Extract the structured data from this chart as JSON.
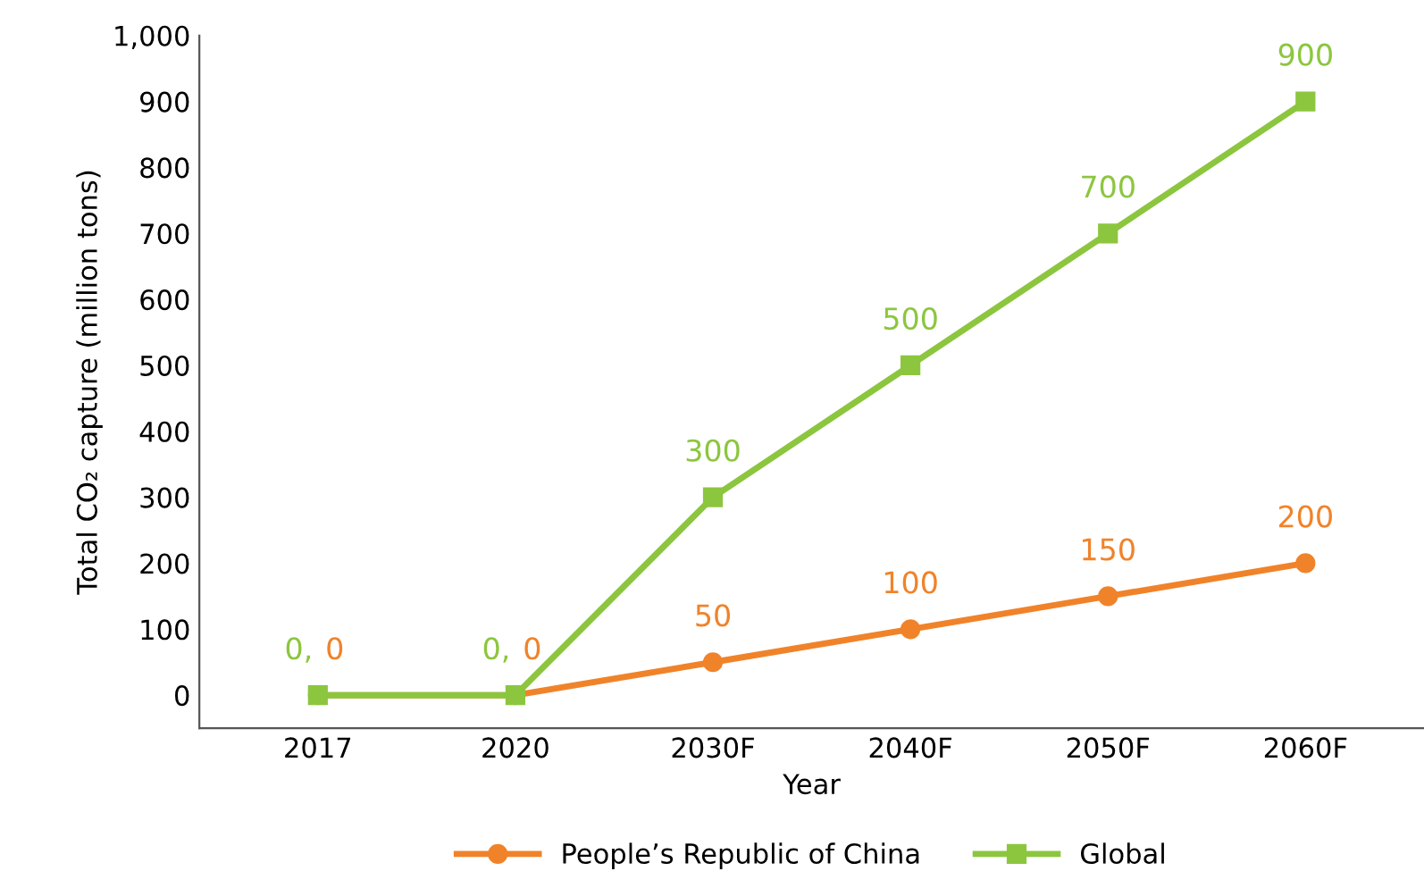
{
  "chart_data": {
    "type": "line",
    "xlabel": "Year",
    "ylabel": "Total CO₂ capture (million tons)",
    "categories": [
      "2017",
      "2020",
      "2030F",
      "2040F",
      "2050F",
      "2060F"
    ],
    "series": [
      {
        "name": "People’s Republic of China",
        "color": "#f0832a",
        "marker": "circle",
        "values": [
          0,
          0,
          50,
          100,
          150,
          200
        ],
        "value_labels": [
          "0",
          "0",
          "50",
          "100",
          "150",
          "200"
        ]
      },
      {
        "name": "Global",
        "color": "#8cc63f",
        "marker": "square",
        "values": [
          0,
          0,
          300,
          500,
          700,
          900
        ],
        "value_labels": [
          "0,",
          "0,",
          "300",
          "500",
          "700",
          "900"
        ]
      }
    ],
    "ylim": [
      -50,
      1000
    ],
    "yticks": [
      0,
      100,
      200,
      300,
      400,
      500,
      600,
      700,
      800,
      900,
      {
        "value": 1000,
        "label": "1,000"
      }
    ],
    "grid": false,
    "legend": "bottom",
    "line_style": "solid"
  }
}
